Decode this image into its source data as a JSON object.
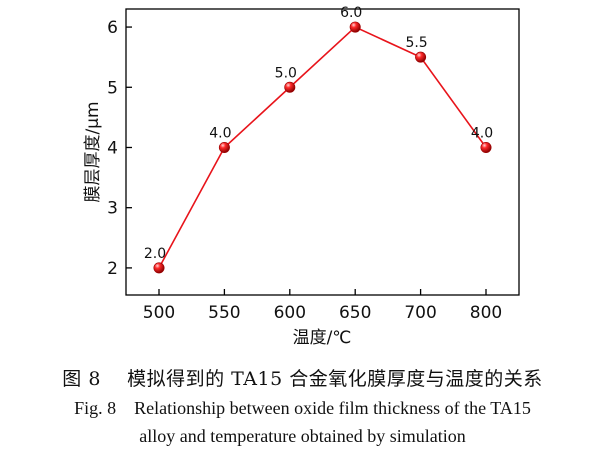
{
  "chart_data": {
    "type": "line",
    "categories": [
      "500",
      "550",
      "600",
      "650",
      "700",
      "800"
    ],
    "series": [
      {
        "values": [
          2.0,
          4.0,
          5.0,
          6.0,
          5.5,
          4.0
        ],
        "color": "#e8141b"
      }
    ],
    "data_labels": [
      "2.0",
      "4.0",
      "5.0",
      "6.0",
      "5.5",
      "4.0"
    ],
    "xlabel": "温度/℃",
    "ylabel": "膜层厚度/μm",
    "ylim": [
      1.55,
      6.3
    ],
    "yticks": [
      2,
      3,
      4,
      5,
      6
    ],
    "grid": false,
    "marker": "sphere"
  },
  "caption": {
    "cn_label": "图 8",
    "cn_text": "模拟得到的 TA15 合金氧化膜厚度与温度的关系",
    "en_label": "Fig. 8",
    "en_line1": "Relationship between oxide film thickness of the TA15",
    "en_line2": "alloy and temperature obtained by simulation"
  }
}
